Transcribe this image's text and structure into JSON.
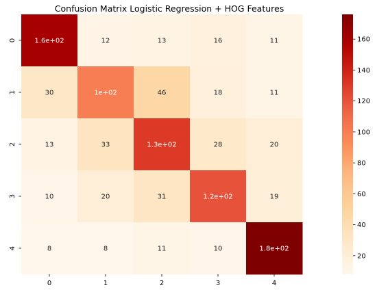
{
  "chart_data": {
    "type": "heatmap",
    "title": "Confusion Matrix Logistic Regression + HOG Features",
    "xlabel": "",
    "ylabel": "",
    "x_categories": [
      "0",
      "1",
      "2",
      "3",
      "4"
    ],
    "y_categories": [
      "0",
      "1",
      "2",
      "3",
      "4"
    ],
    "values": [
      [
        160,
        12,
        13,
        16,
        11
      ],
      [
        30,
        100,
        46,
        18,
        11
      ],
      [
        13,
        33,
        130,
        28,
        20
      ],
      [
        10,
        20,
        31,
        120,
        19
      ],
      [
        8,
        8,
        11,
        10,
        180
      ]
    ],
    "cell_labels": [
      [
        "1.6e+02",
        "12",
        "13",
        "16",
        "11"
      ],
      [
        "30",
        "1e+02",
        "46",
        "18",
        "11"
      ],
      [
        "13",
        "33",
        "1.3e+02",
        "28",
        "20"
      ],
      [
        "10",
        "20",
        "31",
        "1.2e+02",
        "19"
      ],
      [
        "8",
        "8",
        "11",
        "10",
        "1.8e+02"
      ]
    ],
    "colormap": "OrRd",
    "color_range": [
      8,
      176
    ],
    "colorbar_ticks": [
      20,
      40,
      60,
      80,
      100,
      120,
      140,
      160
    ],
    "colors": {
      "low": "#fff7ec",
      "high": "#7f0000"
    }
  }
}
